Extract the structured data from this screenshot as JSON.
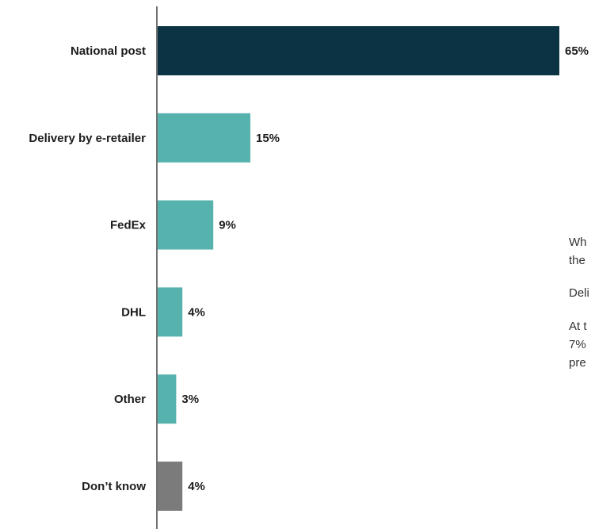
{
  "chart_data": {
    "type": "bar",
    "orientation": "horizontal",
    "categories": [
      "National post",
      "Delivery by e-retailer",
      "FedEx",
      "DHL",
      "Other",
      "Don’t know"
    ],
    "values": [
      65,
      15,
      9,
      4,
      3,
      4
    ],
    "value_labels": [
      "65%",
      "15%",
      "9%",
      "4%",
      "3%",
      "4%"
    ],
    "unit": "%",
    "xlim": [
      0,
      65
    ],
    "colors": [
      "#0c3343",
      "#56b2ad",
      "#56b2ad",
      "#56b2ad",
      "#56b2ad",
      "#7b7b7b"
    ],
    "grid": false,
    "legend": "none"
  },
  "side_text": {
    "line1": "Wh",
    "line2": "the",
    "line3": "Deli",
    "line4": "At t",
    "line5": "7%",
    "line6": "pre"
  }
}
